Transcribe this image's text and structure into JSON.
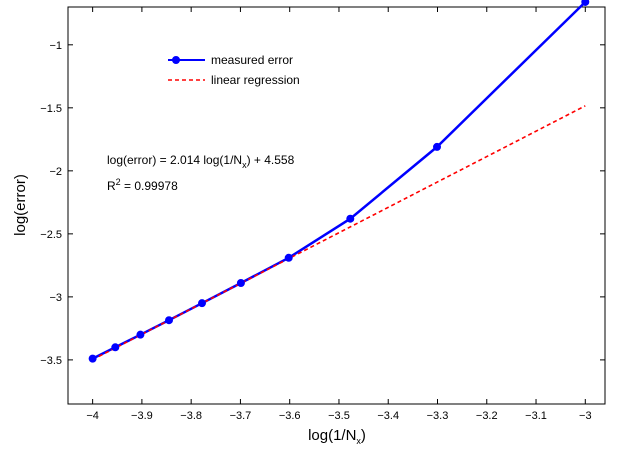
{
  "chart_data": {
    "type": "line",
    "xlabel": {
      "main": "log(1/N",
      "sub": "x",
      "tail": ")"
    },
    "ylabel": "log(error)",
    "xlim": [
      -4.05,
      -2.96
    ],
    "ylim": [
      -3.85,
      -0.7
    ],
    "xticks": [
      -4,
      -3.9,
      -3.8,
      -3.7,
      -3.6,
      -3.5,
      -3.4,
      -3.3,
      -3.2,
      -3.1,
      -3
    ],
    "xtick_labels": [
      "−4",
      "−3.9",
      "−3.8",
      "−3.7",
      "−3.6",
      "−3.5",
      "−3.4",
      "−3.3",
      "−3.2",
      "−3.1",
      "−3"
    ],
    "yticks": [
      -3.5,
      -3,
      -2.5,
      -2,
      -1.5,
      -1
    ],
    "ytick_labels": [
      "−3.5",
      "−3",
      "−2.5",
      "−2",
      "−1.5",
      "−1"
    ],
    "grid": false,
    "legend_position": "top-left",
    "series": [
      {
        "name": "measured error",
        "color": "#0000ff",
        "style": "solid-with-circle-markers",
        "x": [
          -4.0,
          -3.954,
          -3.903,
          -3.845,
          -3.778,
          -3.699,
          -3.602,
          -3.477,
          -3.301,
          -3.0
        ],
        "y": [
          -3.49,
          -3.4,
          -3.3,
          -3.185,
          -3.05,
          -2.89,
          -2.69,
          -2.38,
          -1.81,
          -0.66
        ]
      },
      {
        "name": "linear regression",
        "color": "#ff0000",
        "style": "dashed",
        "x": [
          -4.0,
          -3.0
        ],
        "y": [
          -3.498,
          -1.484
        ]
      }
    ],
    "annotations": {
      "equation": {
        "a": "log(error) = 2.014 log(1/N",
        "sub": "x",
        "b": ") + 4.558"
      },
      "r_squared": {
        "a": "R",
        "sup": "2",
        "b": " = 0.99978"
      }
    }
  }
}
